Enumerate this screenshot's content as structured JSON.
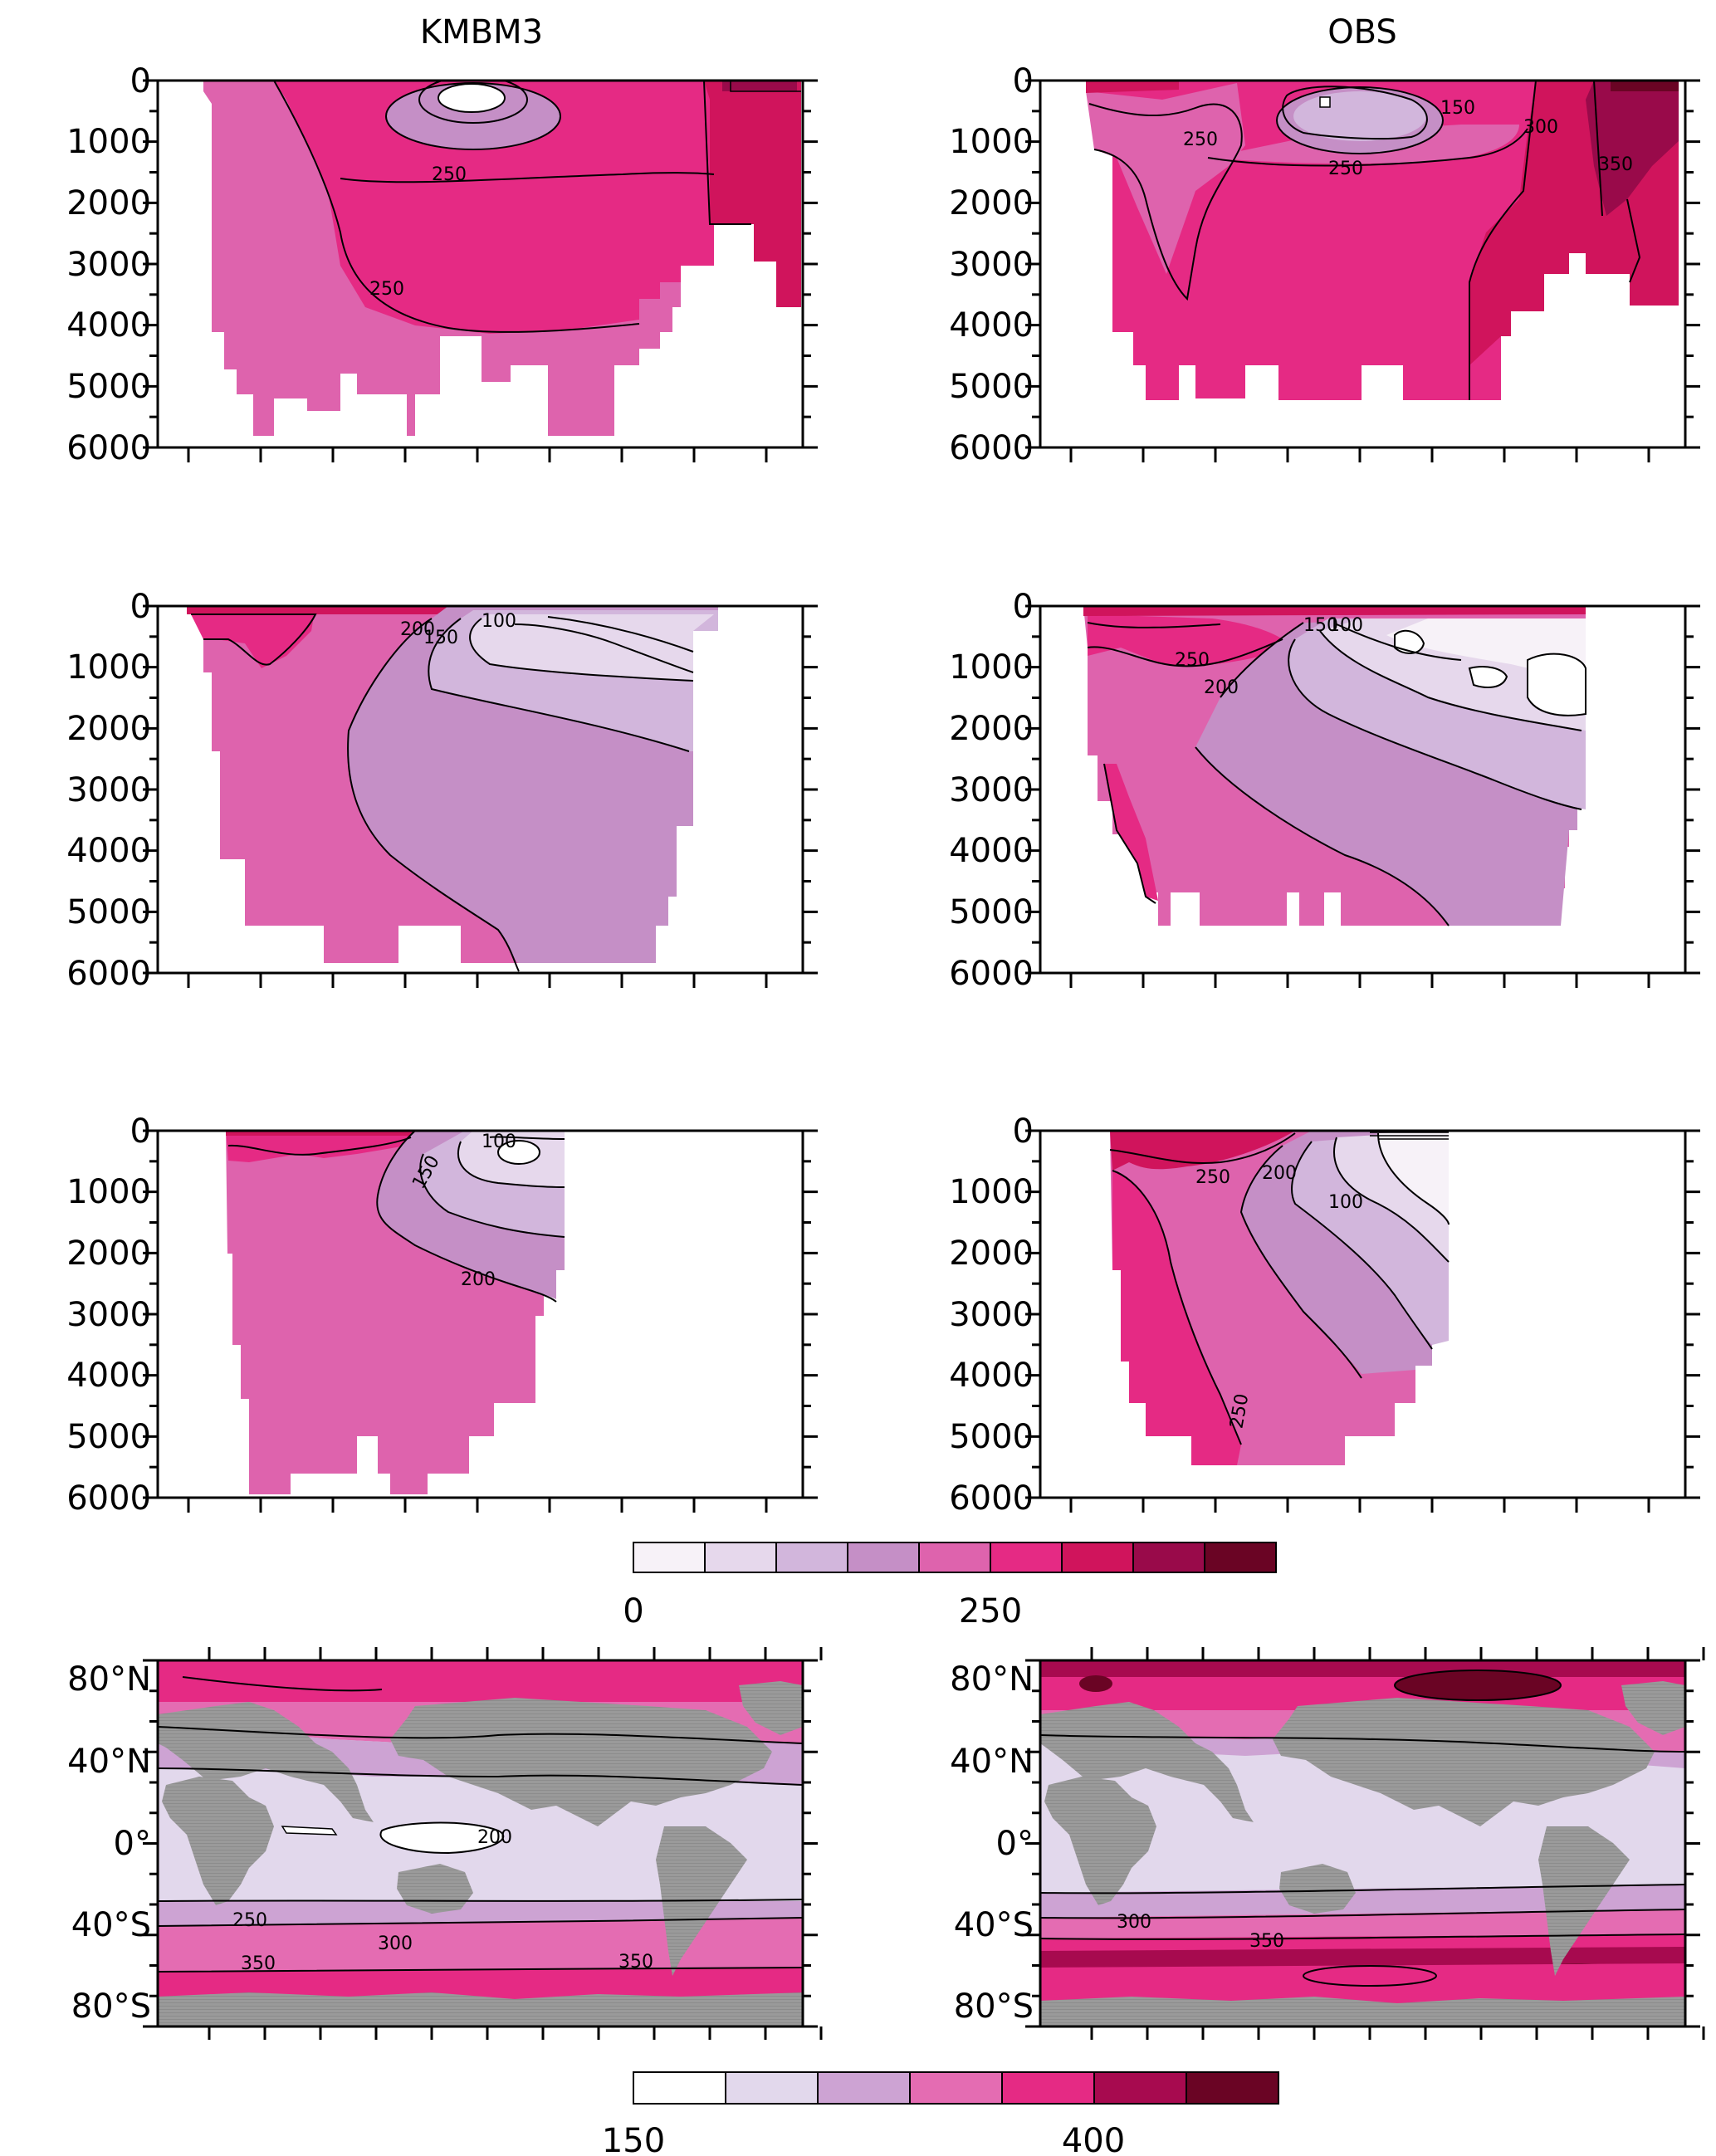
{
  "titles": {
    "left": "KMBM3",
    "right": "OBS"
  },
  "colors": {
    "section_bar": [
      "#f7f2f8",
      "#e6d8ec",
      "#d2b6dc",
      "#c58fc6",
      "#de63ad",
      "#e52a84",
      "#d0145c",
      "#990a4a",
      "#6a0424"
    ],
    "map_bar": [
      "#ffffff",
      "#e2d8ec",
      "#cda3d3",
      "#e46cb2",
      "#e52a84",
      "#a70a4f",
      "#6a0424"
    ],
    "land": "#999999"
  },
  "section_y_ticks": [
    "0",
    "1000",
    "2000",
    "3000",
    "4000",
    "5000",
    "6000"
  ],
  "map_y_ticks": [
    "80°N",
    "40°N",
    "0°",
    "40°S",
    "80°S"
  ],
  "colorbar_section": {
    "labels": [
      "0",
      "250"
    ]
  },
  "colorbar_map": {
    "labels": [
      "150",
      "400"
    ]
  },
  "chart_data": [
    {
      "type": "heatmap",
      "panel": "row1-left",
      "column": "KMBM3",
      "ylim": [
        6000,
        0
      ],
      "y_ticks": [
        0,
        1000,
        2000,
        3000,
        4000,
        5000,
        6000
      ],
      "contours": [
        250
      ]
    },
    {
      "type": "heatmap",
      "panel": "row1-right",
      "column": "OBS",
      "ylim": [
        6000,
        0
      ],
      "y_ticks": [
        0,
        1000,
        2000,
        3000,
        4000,
        5000,
        6000
      ],
      "contours": [
        150,
        250,
        300,
        350
      ]
    },
    {
      "type": "heatmap",
      "panel": "row2-left",
      "column": "KMBM3",
      "ylim": [
        6000,
        0
      ],
      "y_ticks": [
        0,
        1000,
        2000,
        3000,
        4000,
        5000,
        6000
      ],
      "contours": [
        100,
        150,
        200
      ]
    },
    {
      "type": "heatmap",
      "panel": "row2-right",
      "column": "OBS",
      "ylim": [
        6000,
        0
      ],
      "y_ticks": [
        0,
        1000,
        2000,
        3000,
        4000,
        5000,
        6000
      ],
      "contours": [
        100,
        150,
        200,
        250
      ]
    },
    {
      "type": "heatmap",
      "panel": "row3-left",
      "column": "KMBM3",
      "ylim": [
        6000,
        0
      ],
      "y_ticks": [
        0,
        1000,
        2000,
        3000,
        4000,
        5000,
        6000
      ],
      "contours": [
        100,
        150,
        200
      ]
    },
    {
      "type": "heatmap",
      "panel": "row3-right",
      "column": "OBS",
      "ylim": [
        6000,
        0
      ],
      "y_ticks": [
        0,
        1000,
        2000,
        3000,
        4000,
        5000,
        6000
      ],
      "contours": [
        100,
        200,
        250
      ]
    },
    {
      "type": "heatmap",
      "panel": "map-left",
      "column": "KMBM3",
      "y_ticks": [
        "80°N",
        "40°N",
        "0°",
        "40°S",
        "80°S"
      ],
      "contours": [
        200,
        250,
        300,
        350
      ]
    },
    {
      "type": "heatmap",
      "panel": "map-right",
      "column": "OBS",
      "y_ticks": [
        "80°N",
        "40°N",
        "0°",
        "40°S",
        "80°S"
      ],
      "contours": [
        300,
        350
      ]
    },
    {
      "type": "heatmap",
      "panel": "colorbar-section",
      "colorbar_labels": [
        0,
        250
      ]
    },
    {
      "type": "heatmap",
      "panel": "colorbar-map",
      "colorbar_labels": [
        150,
        400
      ]
    }
  ]
}
